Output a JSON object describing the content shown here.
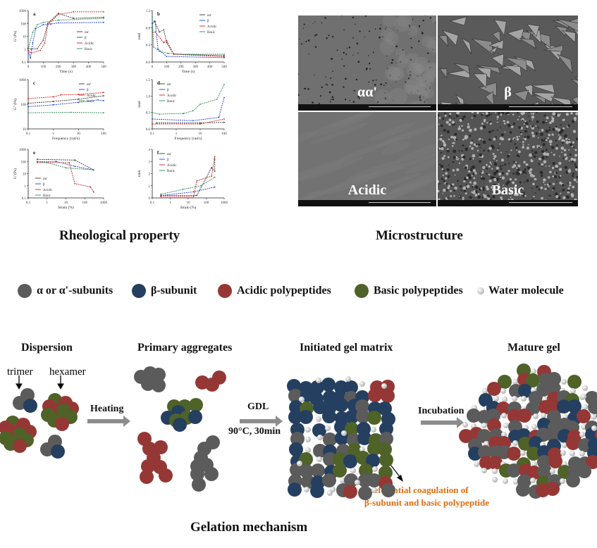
{
  "headings": {
    "rheology": "Rheological property",
    "microstructure": "Microstructure",
    "mechanism": "Gelation mechanism"
  },
  "colors": {
    "alpha": "#5b5b5b",
    "beta": "#243f60",
    "acidic": "#953735",
    "basic": "#4f6228",
    "accent": "#e46c0a"
  },
  "legend": [
    {
      "label": "α or α'-subunits",
      "color": "#5b5b5b"
    },
    {
      "label": "β-subunit",
      "color": "#243f60"
    },
    {
      "label": "Acidic polypeptides",
      "color": "#953735"
    },
    {
      "label": "Basic polypeptides",
      "color": "#4f6228"
    },
    {
      "label": "Water molecule",
      "color": "#d0d0d0"
    }
  ],
  "sem": [
    {
      "label": "αα'"
    },
    {
      "label": "β"
    },
    {
      "label": "Acidic"
    },
    {
      "label": "Basic"
    }
  ],
  "stages": {
    "dispersion": "Dispersion",
    "primary": "Primary aggregates",
    "initiated": "Initiated gel matrix",
    "mature": "Mature gel"
  },
  "annotations": {
    "trimer": "trimer",
    "hexamer": "hexamer",
    "heating": "Heating",
    "gdl": "GDL",
    "conditions": "90°C, 30min",
    "incubation": "Incubation",
    "note_line1": "Preferential coagulation of",
    "note_line2": "β-subunit and basic polypeptide"
  },
  "chart_data": [
    {
      "panel": "a",
      "type": "line",
      "xlabel": "Time (s)",
      "ylabel": "G' (Pa)",
      "xscale": "linear",
      "yscale": "log",
      "xlim": [
        0,
        500
      ],
      "ylim": [
        0.1,
        1000
      ],
      "xticks": [
        0,
        100,
        200,
        300,
        400,
        500
      ],
      "yticks": [
        0.1,
        1,
        10,
        100,
        1000
      ],
      "legend_position": "center-right",
      "series": [
        {
          "name": "αα'",
          "color": "#333333",
          "points": [
            [
              0,
              1.2
            ],
            [
              20,
              1
            ],
            [
              60,
              1.1
            ],
            [
              100,
              5
            ],
            [
              130,
              100
            ],
            [
              200,
              600
            ],
            [
              300,
              250
            ],
            [
              500,
              300
            ]
          ]
        },
        {
          "name": "β",
          "color": "#1f3fd0",
          "points": [
            [
              0,
              0.8
            ],
            [
              15,
              0.2
            ],
            [
              30,
              3
            ],
            [
              50,
              40
            ],
            [
              100,
              80
            ],
            [
              150,
              90
            ],
            [
              200,
              110
            ],
            [
              500,
              120
            ]
          ]
        },
        {
          "name": "Acidic",
          "color": "#d02020",
          "points": [
            [
              0,
              0.8
            ],
            [
              20,
              0.5
            ],
            [
              80,
              0.8
            ],
            [
              110,
              3
            ],
            [
              130,
              80
            ],
            [
              200,
              500
            ],
            [
              300,
              800
            ],
            [
              500,
              800
            ]
          ]
        },
        {
          "name": "Basic",
          "color": "#2e8b57",
          "points": [
            [
              0,
              1
            ],
            [
              30,
              20
            ],
            [
              60,
              80
            ],
            [
              100,
              120
            ],
            [
              200,
              180
            ],
            [
              500,
              250
            ]
          ]
        }
      ]
    },
    {
      "panel": "b",
      "type": "line",
      "xlabel": "Time (s)",
      "ylabel": "tanδ",
      "xscale": "linear",
      "yscale": "linear",
      "xlim": [
        0,
        500
      ],
      "ylim": [
        0,
        1.2
      ],
      "xticks": [
        0,
        100,
        200,
        300,
        400,
        500
      ],
      "yticks": [
        0.0,
        0.4,
        0.8,
        1.2
      ],
      "legend_position": "top-right",
      "series": [
        {
          "name": "αα'",
          "color": "#333333",
          "points": [
            [
              0,
              0.9
            ],
            [
              15,
              0.95
            ],
            [
              50,
              0.7
            ],
            [
              80,
              0.75
            ],
            [
              100,
              0.45
            ],
            [
              150,
              0.18
            ],
            [
              500,
              0.15
            ]
          ]
        },
        {
          "name": "β",
          "color": "#1f3fd0",
          "points": [
            [
              0,
              0.9
            ],
            [
              20,
              0.95
            ],
            [
              40,
              0.3
            ],
            [
              100,
              0.13
            ],
            [
              500,
              0.1
            ]
          ]
        },
        {
          "name": "Acidic",
          "color": "#d02020",
          "points": [
            [
              0,
              0.7
            ],
            [
              20,
              0.7
            ],
            [
              80,
              0.45
            ],
            [
              100,
              0.5
            ],
            [
              150,
              0.18
            ],
            [
              500,
              0.12
            ]
          ]
        },
        {
          "name": "Basic",
          "color": "#2e8b57",
          "points": [
            [
              0,
              1.05
            ],
            [
              10,
              0.35
            ],
            [
              50,
              0.25
            ],
            [
              110,
              0.2
            ],
            [
              200,
              0.18
            ],
            [
              500,
              0.18
            ]
          ]
        }
      ]
    },
    {
      "panel": "c",
      "type": "line",
      "xlabel": "Frequency (rad/s)",
      "ylabel": "G'' (Pa)",
      "xscale": "log",
      "yscale": "log",
      "xlim": [
        0.1,
        100
      ],
      "ylim": [
        10,
        1000
      ],
      "xticks": [
        0.1,
        1,
        10,
        100
      ],
      "yticks": [
        10,
        100,
        1000
      ],
      "legend_position": "top-right",
      "series": [
        {
          "name": "αα'",
          "color": "#333333",
          "points": [
            [
              0.1,
              110
            ],
            [
              1,
              130
            ],
            [
              10,
              160
            ],
            [
              100,
              220
            ]
          ]
        },
        {
          "name": "β",
          "color": "#1f3fd0",
          "points": [
            [
              0.1,
              80
            ],
            [
              1,
              95
            ],
            [
              10,
              120
            ],
            [
              60,
              150
            ],
            [
              100,
              140
            ]
          ]
        },
        {
          "name": "Acidic",
          "color": "#d02020",
          "points": [
            [
              0.1,
              170
            ],
            [
              1,
              200
            ],
            [
              2,
              240
            ],
            [
              10,
              250
            ],
            [
              100,
              300
            ]
          ]
        },
        {
          "name": "Basic",
          "color": "#2e8b57",
          "points": [
            [
              0.1,
              45
            ],
            [
              5,
              47
            ],
            [
              100,
              45
            ]
          ]
        }
      ]
    },
    {
      "panel": "d",
      "type": "line",
      "xlabel": "Frequency (rad/s)",
      "ylabel": "tanδ",
      "xscale": "log",
      "yscale": "linear",
      "xlim": [
        0.1,
        100
      ],
      "ylim": [
        0,
        1.5
      ],
      "xticks": [
        0.1,
        1,
        10,
        100
      ],
      "yticks": [
        0.0,
        0.5,
        1.0,
        1.5
      ],
      "legend_position": "top-left",
      "series": [
        {
          "name": "αα'",
          "color": "#333333",
          "points": [
            [
              0.15,
              0.18
            ],
            [
              10,
              0.18
            ],
            [
              100,
              0.2
            ]
          ]
        },
        {
          "name": "β",
          "color": "#1f3fd0",
          "points": [
            [
              0.1,
              0.3
            ],
            [
              5,
              0.25
            ],
            [
              60,
              0.35
            ],
            [
              100,
              0.95
            ]
          ]
        },
        {
          "name": "Acidic",
          "color": "#d02020",
          "points": [
            [
              0.1,
              0.15
            ],
            [
              10,
              0.15
            ],
            [
              100,
              0.3
            ]
          ]
        },
        {
          "name": "Basic",
          "color": "#2e8b57",
          "points": [
            [
              0.1,
              0.5
            ],
            [
              0.2,
              0.45
            ],
            [
              2,
              0.47
            ],
            [
              5,
              0.55
            ],
            [
              10,
              0.75
            ],
            [
              50,
              0.9
            ],
            [
              100,
              1.35
            ]
          ]
        }
      ]
    },
    {
      "panel": "e",
      "type": "line",
      "xlabel": "Strain (%)",
      "ylabel": "G' (Pa)",
      "xscale": "log",
      "yscale": "log",
      "xlim": [
        0.1,
        1000
      ],
      "ylim": [
        0.1,
        1000
      ],
      "xticks": [
        0.1,
        1,
        10,
        100,
        1000
      ],
      "yticks": [
        0.1,
        1,
        10,
        100,
        1000
      ],
      "legend_position": "bottom-left",
      "series": [
        {
          "name": "αα'",
          "color": "#333333",
          "points": [
            [
              0.3,
              150
            ],
            [
              30,
              130
            ],
            [
              300,
              20
            ]
          ]
        },
        {
          "name": "β",
          "color": "#1f3fd0",
          "points": [
            [
              0.3,
              100
            ],
            [
              3,
              100
            ],
            [
              30,
              40
            ],
            [
              300,
              20
            ]
          ]
        },
        {
          "name": "Acidic",
          "color": "#d02020",
          "points": [
            [
              0.3,
              80
            ],
            [
              15,
              80
            ],
            [
              30,
              1.5
            ],
            [
              200,
              0.8
            ],
            [
              300,
              0.3
            ]
          ]
        },
        {
          "name": "Basic",
          "color": "#2e8b57",
          "points": [
            [
              0.3,
              100
            ],
            [
              1,
              80
            ],
            [
              10,
              30
            ],
            [
              300,
              20
            ]
          ]
        }
      ]
    },
    {
      "panel": "f",
      "type": "line",
      "xlabel": "Strain (%)",
      "ylabel": "tanδ",
      "xscale": "log",
      "yscale": "linear",
      "xlim": [
        0.1,
        1000
      ],
      "ylim": [
        0,
        4
      ],
      "xticks": [
        0.1,
        1,
        10,
        100,
        1000
      ],
      "yticks": [
        0,
        1,
        2,
        3,
        4
      ],
      "legend_position": "top-left",
      "series": [
        {
          "name": "αα'",
          "color": "#333333",
          "points": [
            [
              0.3,
              0.2
            ],
            [
              30,
              0.2
            ],
            [
              200,
              2.5
            ],
            [
              300,
              2.2
            ],
            [
              300,
              3.2
            ]
          ]
        },
        {
          "name": "β",
          "color": "#1f3fd0",
          "points": [
            [
              0.3,
              0.2
            ],
            [
              20,
              0.5
            ],
            [
              300,
              0.9
            ]
          ]
        },
        {
          "name": "Acidic",
          "color": "#d02020",
          "points": [
            [
              0.3,
              0.1
            ],
            [
              20,
              0.1
            ],
            [
              30,
              1.4
            ],
            [
              200,
              1.8
            ],
            [
              300,
              3.4
            ]
          ]
        },
        {
          "name": "Basic",
          "color": "#2e8b57",
          "points": [
            [
              0.3,
              0.3
            ],
            [
              5,
              0.7
            ],
            [
              50,
              1.0
            ],
            [
              300,
              1.7
            ]
          ]
        }
      ]
    }
  ]
}
